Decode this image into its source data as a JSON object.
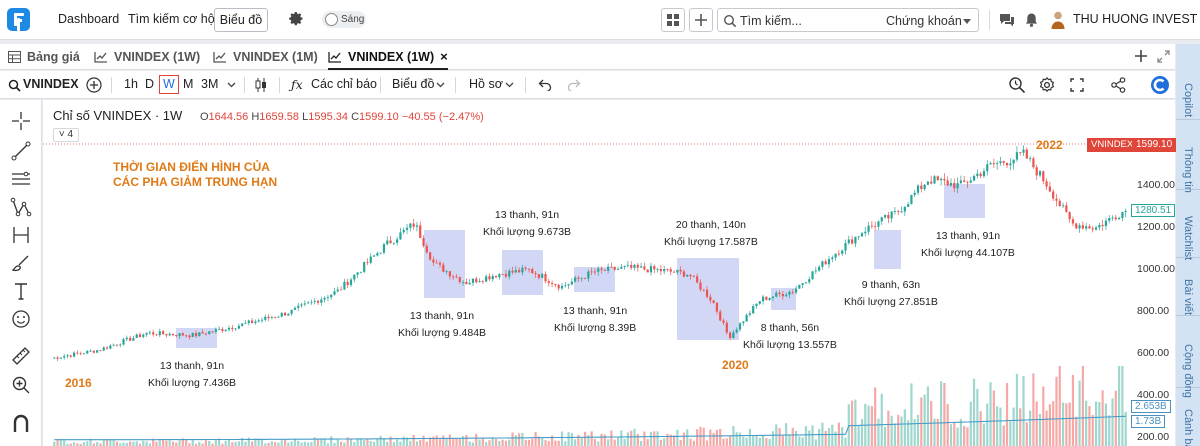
{
  "topnav": {
    "links": [
      "Dashboard",
      "Tìm kiếm cơ hội"
    ],
    "active_button": "Biểu đồ",
    "theme_label": "Sáng",
    "search_placeholder": "Tìm kiếm...",
    "search_scope": "Chứng khoán",
    "user_name": "THU HUONG INVEST"
  },
  "tabs": {
    "items": [
      {
        "label": "Bảng giá"
      },
      {
        "label": "VNINDEX (1W)"
      },
      {
        "label": "VNINDEX (1M)"
      },
      {
        "label": "VNINDEX (1W)",
        "active": true
      }
    ],
    "close_glyph": "×"
  },
  "toolbar": {
    "symbol": "VNINDEX",
    "intervals": [
      "1h",
      "D",
      "W",
      "M",
      "3M"
    ],
    "selected_interval": "W",
    "indicators_label": "Các chỉ báo",
    "chart_label": "Biểu đồ",
    "profile_label": "Hồ sơ"
  },
  "right_panel": {
    "tabs": [
      "Copilot",
      "Thông tin",
      "Watchlist",
      "Bài viết",
      "Cộng đồng",
      "Cảnh báo"
    ]
  },
  "chart": {
    "title": "Chỉ số VNINDEX · 1W",
    "ohlc": {
      "o_label": "O",
      "o": "1644.56",
      "h_label": "H",
      "h": "1659.58",
      "l_label": "L",
      "l": "1595.34",
      "c_label": "C",
      "c": "1599.10",
      "change": "−40.55 (−2.47%)"
    },
    "collapse_label": "4",
    "headline": [
      "THỜI GIAN ĐIỂN HÌNH CỦA",
      "CÁC PHA GIẢM TRUNG HẠN"
    ],
    "years": [
      "2016",
      "2020",
      "2022"
    ],
    "annotations": [
      {
        "l1": "13 thanh, 91n",
        "l2": "Khối lượng 7.436B"
      },
      {
        "l1": "13 thanh, 91n",
        "l2": "Khối lượng 9.484B"
      },
      {
        "l1": "13 thanh, 91n",
        "l2": "Khối lượng 9.673B"
      },
      {
        "l1": "13 thanh, 91n",
        "l2": "Khối lượng 8.39B"
      },
      {
        "l1": "20 thanh, 140n",
        "l2": "Khối lượng 17.587B"
      },
      {
        "l1": "8 thanh, 56n",
        "l2": "Khối lượng 13.557B"
      },
      {
        "l1": "9 thanh, 63n",
        "l2": "Khối lượng 27.851B"
      },
      {
        "l1": "13 thanh, 91n",
        "l2": "Khối lượng 44.107B"
      }
    ],
    "price_tag_symbol": "VNINDEX",
    "price_tag_value": "1599.10",
    "ma_tag": "1280.51",
    "vol_tag_1": "2.653B",
    "vol_tag_2": "1.73B",
    "y_ticks": [
      "1400.00",
      "1200.00",
      "1000.00",
      "800.00",
      "600.00",
      "400.00",
      "200.00"
    ],
    "colors": {
      "up": "#26a69a",
      "down": "#ef5350",
      "highlight": "#c5cdf1",
      "annotation_orange": "#e07a16",
      "ma_line": "#26a69a"
    }
  },
  "chart_data": {
    "type": "candlestick",
    "title": "Chỉ số VNINDEX · 1W",
    "x": [
      "2016",
      "2020",
      "2022"
    ],
    "y_ticks": [
      200,
      400,
      600,
      800,
      1000,
      1200,
      1400
    ],
    "series": [
      {
        "values": [
          [
            2016.0,
            560
          ],
          [
            2016.3,
            600
          ],
          [
            2016.6,
            680
          ],
          [
            2016.9,
            670
          ],
          [
            2017.2,
            720
          ],
          [
            2017.5,
            780
          ],
          [
            2017.8,
            880
          ],
          [
            2018.1,
            1100
          ],
          [
            2018.28,
            1200
          ],
          [
            2018.4,
            1010
          ],
          [
            2018.6,
            920
          ],
          [
            2018.8,
            960
          ],
          [
            2019.0,
            980
          ],
          [
            2019.2,
            900
          ],
          [
            2019.4,
            970
          ],
          [
            2019.6,
            990
          ],
          [
            2019.8,
            980
          ],
          [
            2020.0,
            960
          ],
          [
            2020.15,
            830
          ],
          [
            2020.25,
            660
          ],
          [
            2020.45,
            840
          ],
          [
            2020.65,
            880
          ],
          [
            2020.9,
            1050
          ],
          [
            2021.1,
            1170
          ],
          [
            2021.3,
            1250
          ],
          [
            2021.5,
            1410
          ],
          [
            2021.7,
            1380
          ],
          [
            2021.9,
            1480
          ],
          [
            2022.0,
            1500
          ],
          [
            2022.1,
            1530
          ],
          [
            2022.25,
            1380
          ],
          [
            2022.4,
            1200
          ],
          [
            2022.55,
            1180
          ],
          [
            2022.7,
            1250
          ],
          [
            2022.8,
            1280
          ]
        ]
      }
    ]
  }
}
